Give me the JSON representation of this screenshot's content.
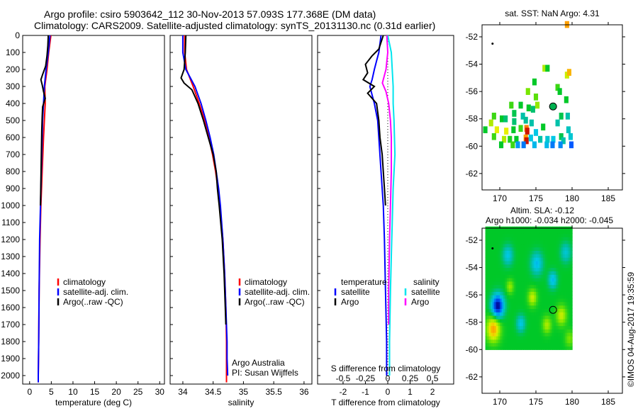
{
  "chart_data": {
    "type": "line",
    "title_lines": [
      "Argo profile: csiro 5903642_112 30-Nov-2013 57.093S 177.368E (DM data)",
      "Climatology: CARS2009. Satellite-adjusted climatology: synTS_20131130.nc (0.31d earlier)"
    ],
    "credit": "©IMOS 04-Aug-2017 19:35:59",
    "depth_axis": {
      "ylim": [
        0,
        2050
      ],
      "ticks": [
        0,
        100,
        200,
        300,
        400,
        500,
        600,
        700,
        800,
        900,
        1000,
        1100,
        1200,
        1300,
        1400,
        1500,
        1600,
        1700,
        1800,
        1900,
        2000
      ],
      "inverted": true
    },
    "profiles": [
      {
        "id": "temperature",
        "xlabel": "temperature (deg C)",
        "xlim": [
          -1.6,
          31.1
        ],
        "xticks": [
          0,
          5,
          10,
          15,
          20,
          25,
          30
        ],
        "legend": [
          {
            "label": "climatology",
            "color": "#ff0000"
          },
          {
            "label": "satellite-adj. clim.",
            "color": "#0000ff"
          },
          {
            "label": "Argo(..raw -QC)",
            "color": "#000000"
          }
        ],
        "series": [
          {
            "name": "climatology",
            "color": "#ff0000",
            "depth": [
              0,
              100,
              200,
              300,
              400,
              500,
              600,
              800,
              1000,
              1200,
              1500,
              1800,
              2000,
              2040
            ],
            "value": [
              4.9,
              4.4,
              4.0,
              3.5,
              3.6,
              3.4,
              3.2,
              2.9,
              2.6,
              2.4,
              2.2,
              2.1,
              2.0,
              2.0
            ]
          },
          {
            "name": "satellite-adj. clim.",
            "color": "#0000ff",
            "depth": [
              0,
              100,
              200,
              300,
              400,
              500,
              600,
              800,
              1000,
              1200,
              1500,
              1800,
              2000,
              2040
            ],
            "value": [
              4.7,
              4.3,
              3.8,
              3.4,
              3.2,
              3.0,
              2.9,
              2.7,
              2.5,
              2.3,
              2.2,
              2.1,
              2.0,
              2.0
            ]
          },
          {
            "name": "Argo",
            "color": "#000000",
            "depth": [
              0,
              60,
              120,
              180,
              230,
              260,
              290,
              330,
              370,
              420,
              480,
              560,
              700,
              850,
              1000
            ],
            "value": [
              4.3,
              4.2,
              4.0,
              3.7,
              3.0,
              2.6,
              2.9,
              3.2,
              3.6,
              3.0,
              2.9,
              2.8,
              2.7,
              2.6,
              2.5
            ]
          }
        ]
      },
      {
        "id": "salinity",
        "xlabel": "salinity",
        "xlim": [
          33.79,
          36.13
        ],
        "xticks": [
          34,
          34.5,
          35,
          35.5,
          36
        ],
        "legend": [
          {
            "label": "climatology",
            "color": "#ff0000"
          },
          {
            "label": "satellite-adj. clim.",
            "color": "#0000ff"
          },
          {
            "label": "Argo(..raw -QC)",
            "color": "#000000"
          }
        ],
        "annotations": [
          "Argo Australia",
          "PI: Susan Wijffels"
        ],
        "series": [
          {
            "name": "climatology",
            "color": "#ff0000",
            "depth": [
              0,
              100,
              200,
              300,
              400,
              500,
              600,
              700,
              800,
              900,
              1000,
              1200,
              1400,
              1600,
              1800,
              2000,
              2040
            ],
            "value": [
              34.03,
              34.03,
              34.06,
              34.17,
              34.27,
              34.36,
              34.43,
              34.49,
              34.54,
              34.58,
              34.61,
              34.66,
              34.69,
              34.71,
              34.72,
              34.72,
              34.72
            ]
          },
          {
            "name": "satellite-adj. clim.",
            "color": "#0000ff",
            "depth": [
              0,
              100,
              200,
              300,
              400,
              500,
              600,
              700,
              800,
              900,
              1000,
              1200,
              1400,
              1600,
              1800,
              1900,
              2000
            ],
            "value": [
              34.0,
              34.0,
              34.05,
              34.2,
              34.3,
              34.38,
              34.45,
              34.51,
              34.55,
              34.59,
              34.62,
              34.66,
              34.69,
              34.71,
              34.73,
              34.73,
              34.74
            ]
          },
          {
            "name": "Argo",
            "color": "#000000",
            "depth": [
              0,
              100,
              200,
              250,
              280,
              320,
              400,
              500,
              600,
              700,
              800,
              900,
              1000,
              1200,
              1400,
              1600,
              1700
            ],
            "value": [
              34.05,
              34.04,
              34.02,
              33.97,
              34.02,
              34.15,
              34.25,
              34.34,
              34.42,
              34.5,
              34.55,
              34.57,
              34.6,
              34.65,
              34.68,
              34.7,
              34.71
            ]
          }
        ]
      },
      {
        "id": "difference",
        "xlabel": "T difference from climatology",
        "xlim": [
          -3.14,
          2.95
        ],
        "xticks": [
          -2,
          -1,
          0,
          1,
          2
        ],
        "top_label": "S difference from climatology",
        "top_xticks": [
          -0.5,
          -0.25,
          0,
          0.25,
          0.5
        ],
        "top_scale": 0.25,
        "legend_temperature": {
          "title": "temperature",
          "items": [
            {
              "label": "satellite",
              "color": "#0000ff"
            },
            {
              "label": "Argo",
              "color": "#000000"
            }
          ]
        },
        "legend_salinity": {
          "title": "salinity",
          "items": [
            {
              "label": "satellite",
              "color": "#00e5ee"
            },
            {
              "label": "Argo",
              "color": "#ff00ff"
            }
          ]
        },
        "series": [
          {
            "name": "T satellite",
            "color": "#0000ff",
            "axis": "T",
            "depth": [
              0,
              100,
              150,
              200,
              260,
              300,
              350,
              400,
              500,
              600,
              800,
              1000,
              1200,
              1500,
              1800,
              2000
            ],
            "value": [
              -0.3,
              -0.4,
              -0.5,
              -0.6,
              -0.7,
              -0.8,
              -0.7,
              -0.6,
              -0.45,
              -0.4,
              -0.3,
              -0.2,
              -0.15,
              -0.1,
              -0.05,
              -0.05
            ]
          },
          {
            "name": "T Argo",
            "color": "#000000",
            "axis": "T",
            "depth": [
              0,
              80,
              120,
              170,
              220,
              260,
              300,
              340,
              400,
              450,
              500,
              600,
              700,
              800,
              900,
              1000
            ],
            "value": [
              -0.2,
              -0.4,
              -0.7,
              -1.0,
              -0.9,
              -1.1,
              -0.6,
              -0.9,
              -0.5,
              -0.45,
              -0.4,
              -0.35,
              -0.25,
              -0.2,
              -0.15,
              -0.1
            ]
          },
          {
            "name": "S satellite",
            "color": "#00e5ee",
            "axis": "S",
            "depth": [
              0,
              100,
              200,
              300,
              400,
              500,
              700,
              900,
              1100,
              1300,
              1500,
              1800,
              2000
            ],
            "value": [
              0.0,
              0.04,
              0.05,
              0.06,
              0.06,
              0.07,
              0.08,
              0.06,
              0.05,
              0.04,
              0.03,
              0.02,
              0.02
            ]
          },
          {
            "name": "S Argo",
            "color": "#ff00ff",
            "axis": "S",
            "depth": [
              0,
              100,
              200,
              280,
              330,
              400,
              500,
              600,
              800,
              1000,
              1200,
              1500,
              1700
            ],
            "value": [
              -0.01,
              0.0,
              -0.02,
              -0.06,
              -0.02,
              0.01,
              0.03,
              0.04,
              0.04,
              0.03,
              0.02,
              0.01,
              0.01
            ]
          }
        ]
      }
    ],
    "maps": [
      {
        "id": "sst",
        "title": "sat. SST: NaN Argo: 4.31",
        "xlim": [
          167.55,
          186.96
        ],
        "ylim": [
          -63.2,
          -51.12
        ],
        "xticks": [
          170,
          175,
          180,
          185
        ],
        "yticks": [
          -52,
          -54,
          -56,
          -58,
          -60,
          -62
        ],
        "argo_position": [
          177.368,
          -57.093
        ],
        "marker": [
          169.0,
          -52.5
        ],
        "cells": [
          [
            176.2,
            -54.3,
            0.3
          ],
          [
            176.6,
            -54.3,
            0
          ],
          [
            179.3,
            -54.8,
            0.35
          ],
          [
            179.6,
            -54.6,
            0.55
          ],
          [
            174.8,
            -55.3,
            0
          ],
          [
            178,
            -55.7,
            0.1
          ],
          [
            178.3,
            -56,
            0
          ],
          [
            173.9,
            -56,
            0.2
          ],
          [
            175,
            -56.4,
            0.15
          ],
          [
            179.2,
            -56.6,
            0
          ],
          [
            175.2,
            -57,
            0.25
          ],
          [
            172.9,
            -57,
            0
          ],
          [
            171.6,
            -57,
            0.1
          ],
          [
            174,
            -57.2,
            0
          ],
          [
            174.6,
            -57.3,
            -0.1
          ],
          [
            172,
            -57.6,
            -0.05
          ],
          [
            173.2,
            -57.8,
            -0.2
          ],
          [
            178.5,
            -57.8,
            -0.05
          ],
          [
            179.4,
            -57.8,
            -0.2
          ],
          [
            169.2,
            -57.8,
            0.1
          ],
          [
            170.3,
            -58,
            0
          ],
          [
            170.8,
            -58,
            -0.1
          ],
          [
            172,
            -58.2,
            -0.1
          ],
          [
            173.6,
            -58.1,
            -0.15
          ],
          [
            174.4,
            -58.3,
            -0.2
          ],
          [
            168.8,
            -58.3,
            0.3
          ],
          [
            176,
            -58.6,
            0
          ],
          [
            178,
            -58.3,
            -0.2
          ],
          [
            179.5,
            -58.8,
            -0.25
          ],
          [
            169.6,
            -58.8,
            0.4
          ],
          [
            170.9,
            -58.9,
            0.4
          ],
          [
            171.9,
            -58.8,
            0
          ],
          [
            172.9,
            -58.7,
            0.1
          ],
          [
            173.7,
            -58.7,
            0.65
          ],
          [
            173.8,
            -58.9,
            0.9
          ],
          [
            175,
            -59,
            -0.35
          ],
          [
            178.5,
            -59.3,
            -0.05
          ],
          [
            169.2,
            -59.3,
            0.1
          ],
          [
            170.6,
            -59.5,
            0.3
          ],
          [
            171.4,
            -59.5,
            0.05
          ],
          [
            172.3,
            -59.5,
            0
          ],
          [
            173.6,
            -59.4,
            0.6
          ],
          [
            173.7,
            -59.6,
            0.9
          ],
          [
            174.3,
            -59.4,
            -0.35
          ],
          [
            175.6,
            -59.5,
            -0.2
          ],
          [
            177.4,
            -59.5,
            -0.35
          ],
          [
            178.8,
            -59.6,
            -0.2
          ],
          [
            170.2,
            -59.9,
            0
          ],
          [
            171.8,
            -59.9,
            0.1
          ],
          [
            172.5,
            -59.9,
            -0.5
          ],
          [
            173.3,
            -59.9,
            -0.6
          ],
          [
            174.8,
            -59.9,
            -0.4
          ],
          [
            176.5,
            -59.9,
            -0.4
          ],
          [
            177.3,
            -59.9,
            -0.6
          ],
          [
            178.4,
            -59.9,
            -0.55
          ],
          [
            179.9,
            -59.9,
            -0.7
          ],
          [
            179.3,
            -51.1,
            0.6
          ],
          [
            168,
            -58.8,
            0
          ],
          [
            176.6,
            -59.5,
            -0.3
          ],
          [
            179.8,
            -59.3,
            -0.3
          ]
        ]
      },
      {
        "id": "sla",
        "title_lines": [
          "Altim. SLA: -0.12",
          "Argo h1000: -0.034 h2000: -0.045"
        ],
        "xlim": [
          167.55,
          186.96
        ],
        "ylim": [
          -63.2,
          -51.12
        ],
        "xticks": [
          170,
          175,
          180,
          185
        ],
        "yticks": [
          -52,
          -54,
          -56,
          -58,
          -60,
          -62
        ],
        "argo_position": [
          177.368,
          -57.093
        ],
        "marker": [
          169.0,
          -52.6
        ],
        "field_extent": {
          "lon": [
            168,
            180
          ],
          "lat": [
            -60,
            -51.1
          ]
        },
        "features": [
          [
            169.6,
            -56.9,
            -1.0,
            0.8
          ],
          [
            171,
            -53.2,
            -0.35,
            0.7
          ],
          [
            175,
            -53.8,
            -0.4,
            0.8
          ],
          [
            177.2,
            -55,
            -0.4,
            0.6
          ],
          [
            172.8,
            -58.2,
            -0.35,
            0.6
          ],
          [
            179,
            -53,
            -0.3,
            0.7
          ],
          [
            174.4,
            -56.3,
            0.35,
            0.6
          ],
          [
            178.4,
            -57.6,
            0.35,
            0.7
          ],
          [
            176.4,
            -58.3,
            0.3,
            0.6
          ],
          [
            169,
            -58.6,
            0.6,
            0.9
          ],
          [
            171.3,
            -55.5,
            0.25,
            0.5
          ],
          [
            179.5,
            -59.3,
            0.2,
            0.6
          ]
        ]
      }
    ]
  }
}
